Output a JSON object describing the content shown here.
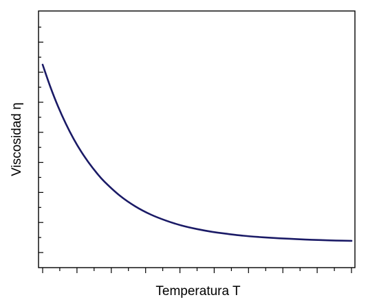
{
  "chart_data": {
    "type": "line",
    "title": "",
    "xlabel": "Temperatura T",
    "ylabel": "Viscosidad η",
    "x_tick_labels": [],
    "y_tick_labels": [],
    "xlim": [
      0,
      1
    ],
    "ylim": [
      0,
      1
    ],
    "grid": false,
    "legend": "none",
    "series": [
      {
        "color": "#1a1a66",
        "x": [
          0.0,
          0.025,
          0.05,
          0.075,
          0.1,
          0.125,
          0.15,
          0.175,
          0.2,
          0.25,
          0.3,
          0.35,
          0.4,
          0.45,
          0.5,
          0.55,
          0.6,
          0.65,
          0.7,
          0.75,
          0.8,
          0.85,
          0.9,
          0.95,
          1.0
        ],
        "y": [
          0.795,
          0.708,
          0.631,
          0.564,
          0.505,
          0.454,
          0.41,
          0.371,
          0.337,
          0.282,
          0.24,
          0.208,
          0.184,
          0.165,
          0.151,
          0.14,
          0.132,
          0.125,
          0.12,
          0.116,
          0.113,
          0.11,
          0.108,
          0.106,
          0.105
        ]
      }
    ]
  }
}
